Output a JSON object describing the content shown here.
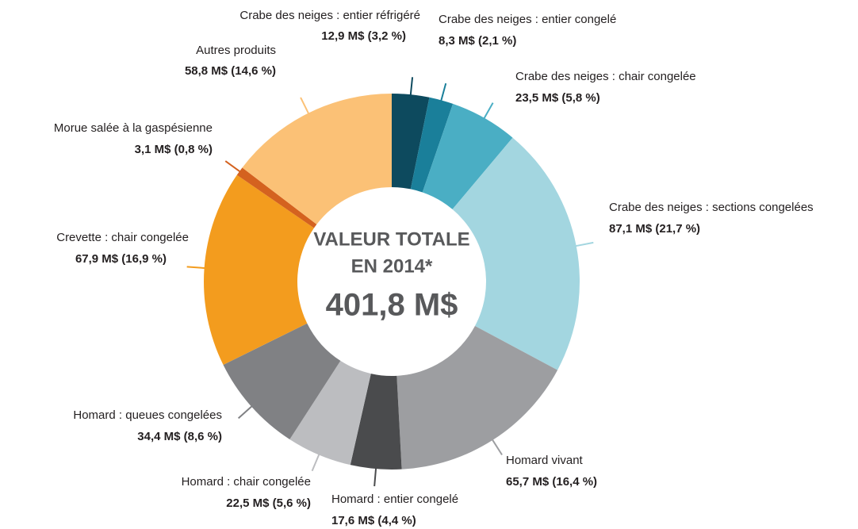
{
  "chart_data": {
    "type": "donut",
    "center_title": [
      "VALEUR TOTALE",
      "EN 2014*"
    ],
    "total_label": "401,8 M$",
    "categories": [
      "Crabe des neiges : entier réfrigéré",
      "Crabe des neiges : entier congelé",
      "Crabe des neiges : chair congelée",
      "Crabe des neiges : sections congelées",
      "Homard vivant",
      "Homard : entier congelé",
      "Homard : chair congelée",
      "Homard : queues congelées",
      "Crevette : chair congelée",
      "Morue salée à la gaspésienne",
      "Autres produits"
    ],
    "values": [
      12.9,
      8.3,
      23.5,
      87.1,
      65.7,
      17.6,
      22.5,
      34.4,
      67.9,
      3.1,
      58.8
    ],
    "value_labels": [
      "12,9 M$ (3,2 %)",
      "8,3 M$ (2,1 %)",
      "23,5 M$ (5,8 %)",
      "87,1 M$ (21,7 %)",
      "65,7 M$ (16,4 %)",
      "17,6 M$ (4,4 %)",
      "22,5 M$ (5,6 %)",
      "34,4 M$ (8,6 %)",
      "67,9 M$ (16,9 %)",
      "3,1 M$ (0,8 %)",
      "58,8 M$ (14,6 %)"
    ],
    "colors": [
      "#0d4a5e",
      "#1a7f9a",
      "#4aaec4",
      "#a3d6e0",
      "#9d9ea1",
      "#4a4b4d",
      "#bcbdc0",
      "#808184",
      "#f39c1e",
      "#d4621f",
      "#fbc176"
    ]
  }
}
